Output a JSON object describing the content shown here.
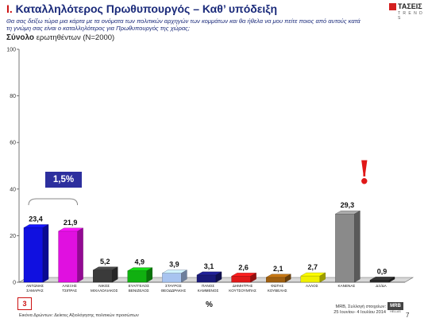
{
  "header": {
    "section": "Ι.",
    "title": "Καταλληλότερος Πρωθυπουργός – Καθ’ υπόδειξη",
    "question": "Θα σας δείξω τώρα μια κάρτα με τα ονόματα των πολιτικών αρχηγών των κομμάτων και θα ήθελα να μου πείτε ποιος από αυτούς κατά τη γνώμη σας είναι ο καταλληλότερος για Πρωθυπουργός της χώρας;",
    "base_lead": "Σύνολο",
    "base_rest": "ερωτηθέντων (N=2000)"
  },
  "logo": {
    "name": "ΤΑΣΕΙΣ",
    "sub": "T R E N D S"
  },
  "chart_data": {
    "type": "bar",
    "categories": [
      [
        "ΑΝΤΩΝΗΣ",
        "ΣΑΜΑΡΑΣ"
      ],
      [
        "ΑΛΕΞΗΣ",
        "ΤΣΙΠΡΑΣ"
      ],
      [
        "ΝΙΚΟΣ",
        "ΜΙΧΑΛΟΛΙΑΚΟΣ"
      ],
      [
        "ΕΥΑΓΓΕΛΟΣ",
        "ΒΕΝΙΖΕΛΟΣ"
      ],
      [
        "ΣΤΑΥΡΟΣ",
        "ΘΕΟΔΩΡΑΚΗΣ"
      ],
      [
        "ΠΑΝΟΣ",
        "ΚΑΜΜΕΝΟΣ"
      ],
      [
        "ΔΗΜΗΤΡΗΣ",
        "ΚΟΥΤΣΟΥΜΠΑΣ"
      ],
      [
        "ΦΩΤΗΣ",
        "ΚΟΥΒΕΛΗΣ"
      ],
      [
        "ΑΛΛΟΣ"
      ],
      [
        "ΚΑΝΕΝΑΣ"
      ],
      [
        "ΔΞ/ΔΑ"
      ]
    ],
    "values": [
      23.4,
      21.9,
      5.2,
      4.9,
      3.9,
      3.1,
      2.6,
      2.1,
      2.7,
      29.3,
      0.9
    ],
    "value_labels": [
      "23,4",
      "21,9",
      "5,2",
      "4,9",
      "3,9",
      "3,1",
      "2,6",
      "2,1",
      "2,7",
      "29,3",
      "0,9"
    ],
    "colors": [
      "#1010e0",
      "#e010e0",
      "#3a3a3a",
      "#10b010",
      "#a8c4f0",
      "#1a1a7a",
      "#e01818",
      "#a06010",
      "#f0f000",
      "#8a8a8a",
      "#2a2a2a"
    ],
    "ylim": [
      0,
      100
    ],
    "yticks": [
      0,
      20,
      40,
      60,
      80,
      100
    ],
    "unit": "%",
    "grid": false
  },
  "annotations": {
    "gap_label": "1,5%",
    "exclamation": "!"
  },
  "footer": {
    "box_number": "3",
    "left": "Εικόνα Δρώντων: Δείκτες Αξιολόγησης πολιτικών προσώπων",
    "right_line1": "MRB, Συλλογή στοιχείων:",
    "right_line2": "25 Ιουνίου- 4 Ιουλίου 2014",
    "mrb_label": "MRB",
    "mrb_sub": "HELLAS",
    "page_number": "7"
  }
}
